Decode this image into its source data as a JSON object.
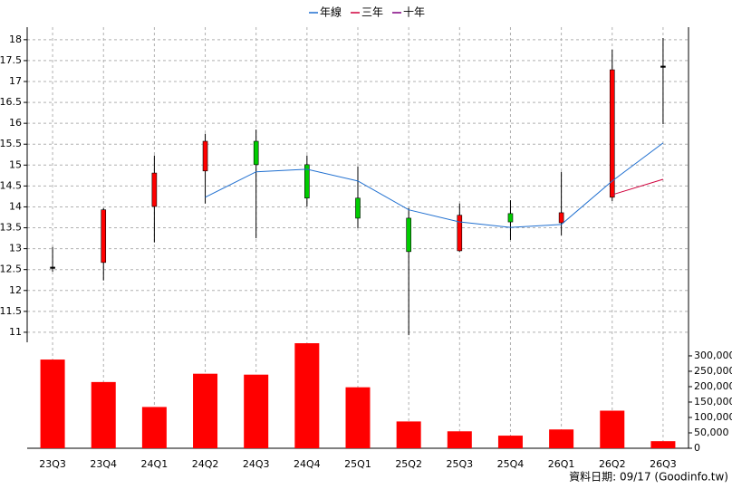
{
  "chart_data": {
    "type": "candlestick",
    "categories": [
      "23Q3",
      "23Q4",
      "24Q1",
      "24Q2",
      "24Q3",
      "24Q4",
      "25Q1",
      "25Q2",
      "25Q3",
      "25Q4",
      "26Q1",
      "26Q2",
      "26Q3"
    ],
    "open": [
      12.56,
      12.67,
      14.01,
      14.86,
      15.57,
      15.01,
      14.21,
      13.73,
      12.95,
      13.84,
      13.62,
      14.23,
      17.37
    ],
    "high": [
      13.04,
      13.97,
      15.23,
      15.75,
      15.85,
      15.23,
      14.97,
      13.97,
      14.08,
      14.16,
      14.84,
      17.76,
      18.04
    ],
    "low": [
      12.45,
      12.24,
      13.15,
      14.08,
      13.25,
      14.01,
      13.49,
      10.93,
      12.93,
      13.21,
      13.32,
      14.14,
      15.98
    ],
    "close": [
      12.56,
      13.93,
      14.81,
      15.57,
      15.01,
      14.21,
      13.73,
      12.93,
      13.8,
      13.64,
      13.86,
      17.28,
      17.37
    ],
    "up_color": "#ff0000",
    "down_color": "#00cc00",
    "flat_color": "#000000",
    "series": [
      {
        "name": "年線",
        "color": "#1f6fd0",
        "values": [
          null,
          null,
          null,
          14.23,
          14.84,
          14.9,
          14.62,
          13.93,
          13.64,
          13.51,
          13.58,
          14.62,
          15.53
        ]
      },
      {
        "name": "三年",
        "color": "#d0003c",
        "values": [
          null,
          null,
          null,
          null,
          null,
          null,
          null,
          null,
          null,
          null,
          null,
          14.29,
          14.66
        ]
      },
      {
        "name": "十年",
        "color": "#800080",
        "values": [
          null,
          null,
          null,
          null,
          null,
          null,
          null,
          null,
          null,
          null,
          null,
          null,
          null
        ]
      }
    ],
    "ylim": [
      10.76,
      18.3
    ],
    "yticks": [
      11,
      11.5,
      12,
      12.5,
      13,
      13.5,
      14,
      14.5,
      15,
      15.5,
      16,
      16.5,
      17,
      17.5,
      18
    ],
    "grid": true,
    "legend": "top",
    "volume": {
      "color": "#ff0000",
      "values": [
        288000,
        215000,
        134000,
        242000,
        239000,
        341000,
        198000,
        87000,
        55000,
        41000,
        61000,
        122000,
        23000
      ],
      "ylim": [
        0,
        344000
      ],
      "yticks": [
        0,
        {
          "value": 50000,
          "label": "50,000"
        },
        {
          "value": 100000,
          "label": "100,000"
        },
        {
          "value": 150000,
          "label": "150,000"
        },
        {
          "value": 200000,
          "label": "200,000"
        },
        {
          "value": 250000,
          "label": "250,000"
        },
        {
          "value": 300000,
          "label": "300,000"
        }
      ]
    },
    "footer": "資料日期: 09/17  (Goodinfo.tw)"
  }
}
